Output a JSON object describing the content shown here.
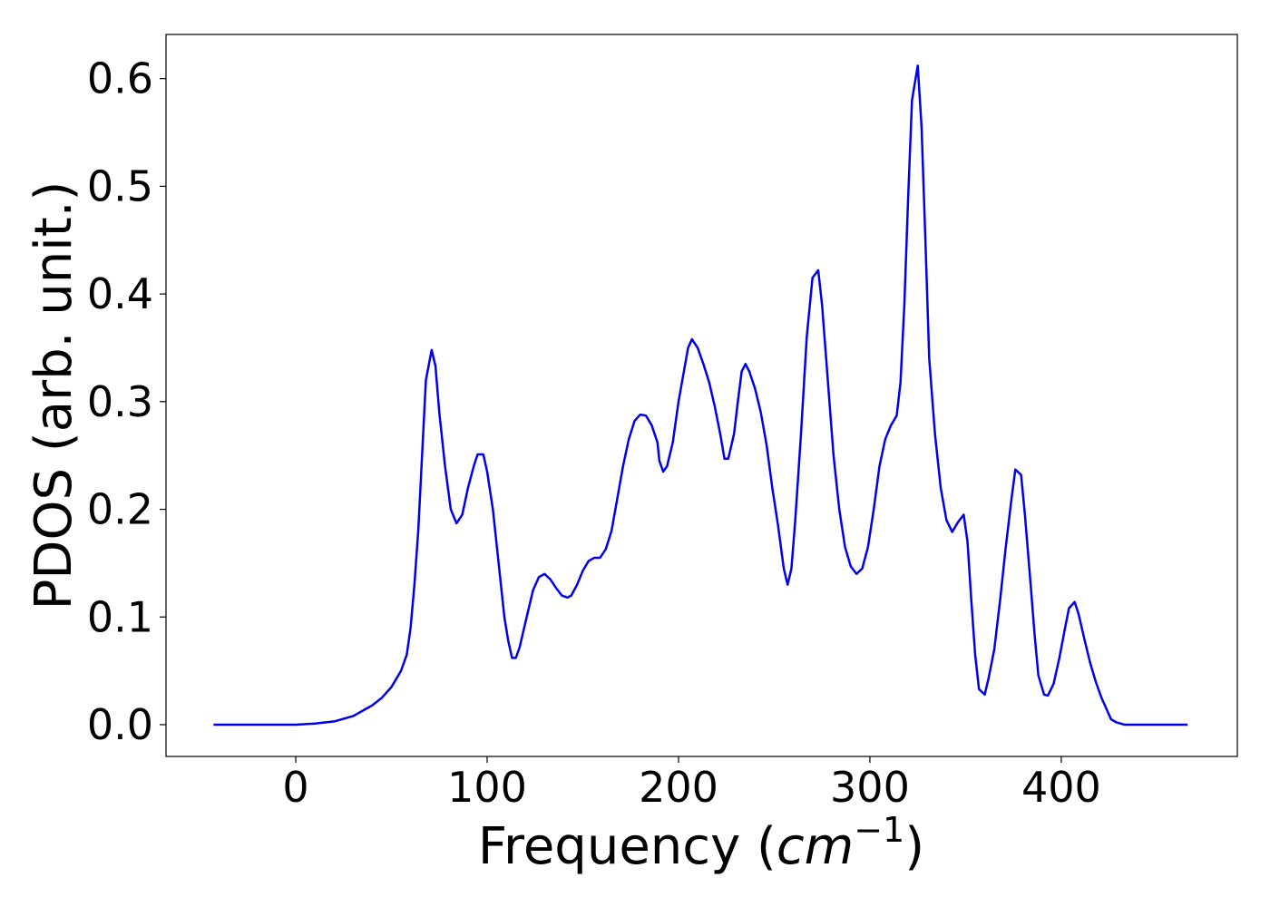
{
  "chart_data": {
    "type": "line",
    "xlabel": [
      "Frequency (",
      "cm",
      "−1",
      ")"
    ],
    "ylabel": "PDOS (arb. unit.)",
    "xlim": [
      -67.8,
      492
    ],
    "ylim": [
      -0.0295,
      0.641
    ],
    "xticks": [
      0,
      100,
      200,
      300,
      400
    ],
    "yticks": [
      {
        "value": 0,
        "label": "0.0"
      },
      {
        "value": 0.1,
        "label": "0.1"
      },
      {
        "value": 0.2,
        "label": "0.2"
      },
      {
        "value": 0.3,
        "label": "0.3"
      },
      {
        "value": 0.4,
        "label": "0.4"
      },
      {
        "value": 0.5,
        "label": "0.5"
      },
      {
        "value": 0.6,
        "label": "0.6"
      }
    ],
    "grid": false,
    "series": [
      {
        "color": "#0000ee",
        "x": [
          -43,
          0,
          10,
          20,
          30,
          40,
          45,
          50,
          55,
          58,
          60,
          62,
          64,
          66,
          68,
          71,
          73,
          75,
          78,
          81,
          84,
          87,
          90,
          93,
          95,
          98,
          100,
          103,
          106,
          109,
          111,
          113,
          115,
          117,
          120,
          124,
          127,
          130,
          133,
          136,
          139,
          142,
          144,
          147,
          150,
          153,
          156,
          159,
          162,
          165,
          168,
          171,
          174,
          177,
          180,
          183,
          186,
          189,
          190,
          192,
          194,
          197,
          200,
          203,
          205,
          207,
          210,
          213,
          216,
          219,
          222,
          224,
          226,
          229,
          231,
          233,
          235,
          237,
          240,
          243,
          246,
          249,
          252,
          255,
          257,
          259,
          261,
          264,
          267,
          270,
          273,
          275,
          278,
          281,
          284,
          287,
          290,
          293,
          296,
          299,
          302,
          305,
          308,
          311,
          314,
          316,
          318,
          320,
          322,
          325,
          327,
          329,
          331,
          334,
          337,
          340,
          343,
          346,
          349,
          351,
          353,
          355,
          357,
          360,
          362,
          365,
          368,
          371,
          374,
          376,
          379,
          381,
          384,
          386,
          388,
          391,
          393,
          396,
          399,
          402,
          404,
          407,
          409,
          412,
          415,
          418,
          421,
          424,
          426,
          429,
          433,
          466
        ],
        "values": [
          0,
          0,
          0.001,
          0.003,
          0.008,
          0.018,
          0.025,
          0.035,
          0.05,
          0.065,
          0.09,
          0.13,
          0.18,
          0.25,
          0.32,
          0.348,
          0.333,
          0.29,
          0.24,
          0.2,
          0.187,
          0.195,
          0.22,
          0.24,
          0.251,
          0.251,
          0.235,
          0.2,
          0.15,
          0.1,
          0.078,
          0.062,
          0.062,
          0.072,
          0.095,
          0.125,
          0.137,
          0.14,
          0.135,
          0.127,
          0.12,
          0.118,
          0.12,
          0.13,
          0.143,
          0.152,
          0.155,
          0.155,
          0.163,
          0.18,
          0.21,
          0.24,
          0.265,
          0.282,
          0.288,
          0.287,
          0.278,
          0.262,
          0.245,
          0.235,
          0.24,
          0.262,
          0.3,
          0.33,
          0.35,
          0.358,
          0.35,
          0.335,
          0.318,
          0.295,
          0.268,
          0.247,
          0.247,
          0.27,
          0.3,
          0.328,
          0.335,
          0.328,
          0.312,
          0.29,
          0.26,
          0.22,
          0.185,
          0.145,
          0.13,
          0.145,
          0.19,
          0.27,
          0.36,
          0.415,
          0.422,
          0.39,
          0.32,
          0.25,
          0.2,
          0.165,
          0.147,
          0.14,
          0.145,
          0.165,
          0.2,
          0.24,
          0.265,
          0.278,
          0.287,
          0.318,
          0.39,
          0.49,
          0.58,
          0.612,
          0.555,
          0.45,
          0.34,
          0.27,
          0.22,
          0.19,
          0.179,
          0.188,
          0.195,
          0.17,
          0.115,
          0.065,
          0.033,
          0.028,
          0.043,
          0.07,
          0.115,
          0.165,
          0.21,
          0.237,
          0.232,
          0.195,
          0.13,
          0.085,
          0.046,
          0.028,
          0.027,
          0.038,
          0.062,
          0.09,
          0.108,
          0.114,
          0.103,
          0.08,
          0.058,
          0.04,
          0.025,
          0.013,
          0.005,
          0.002,
          0,
          0
        ]
      }
    ]
  }
}
